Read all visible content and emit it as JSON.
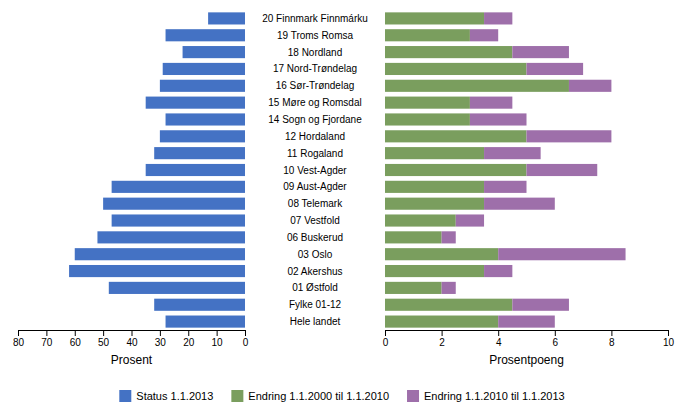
{
  "chart_data": [
    {
      "type": "bar",
      "orientation": "horizontal",
      "categories": [
        "Hele landet",
        "Fylke 01-12",
        "01 Østfold",
        "02 Akershus",
        "03 Oslo",
        "06 Buskerud",
        "07 Vestfold",
        "08 Telemark",
        "09 Aust-Agder",
        "10 Vest-Agder",
        "11 Rogaland",
        "12 Hordaland",
        "14 Sogn og Fjordane",
        "15 Møre og Romsdal",
        "16 Sør-Trøndelag",
        "17 Nord-Trøndelag",
        "18 Nordland",
        "19 Troms Romsa",
        "20 Finnmark Finnmárku"
      ],
      "series": [
        {
          "name": "Status 1.1.2013",
          "color": "#4472c4",
          "values": [
            28,
            32,
            48,
            62,
            60,
            52,
            47,
            50,
            47,
            35,
            32,
            30,
            28,
            35,
            30,
            29,
            22,
            28,
            13
          ]
        }
      ],
      "xlabel": "Prosent",
      "xlim": [
        80,
        0
      ],
      "xticks": [
        80,
        70,
        60,
        50,
        40,
        30,
        20,
        10,
        0
      ],
      "legend": "bottom"
    },
    {
      "type": "bar",
      "orientation": "horizontal",
      "stacked": true,
      "categories": [
        "Hele landet",
        "Fylke 01-12",
        "01 Østfold",
        "02 Akershus",
        "03 Oslo",
        "06 Buskerud",
        "07 Vestfold",
        "08 Telemark",
        "09 Aust-Agder",
        "10 Vest-Agder",
        "11 Rogaland",
        "12 Hordaland",
        "14 Sogn og Fjordane",
        "15 Møre og Romsdal",
        "16 Sør-Trøndelag",
        "17 Nord-Trøndelag",
        "18 Nordland",
        "19 Troms Romsa",
        "20 Finnmark Finnmárku"
      ],
      "series": [
        {
          "name": "Endring 1.1.2000 til 1.1.2010",
          "color": "#7a9e5e",
          "values": [
            4.0,
            4.5,
            2.0,
            3.5,
            4.0,
            2.0,
            2.5,
            3.5,
            3.5,
            5.0,
            3.5,
            5.0,
            3.0,
            3.0,
            6.5,
            5.0,
            4.5,
            3.0,
            3.5
          ]
        },
        {
          "name": "Endring 1.1.2010 til 1.1.2013",
          "color": "#9e6faa",
          "values": [
            2.0,
            2.0,
            0.5,
            1.0,
            4.5,
            0.5,
            1.0,
            2.5,
            1.5,
            2.5,
            2.0,
            3.0,
            2.0,
            1.5,
            1.5,
            2.0,
            2.0,
            1.0,
            1.0
          ]
        }
      ],
      "xlabel": "Prosentpoeng",
      "xlim": [
        0,
        10
      ],
      "xticks": [
        0,
        2,
        4,
        6,
        8,
        10
      ]
    }
  ]
}
